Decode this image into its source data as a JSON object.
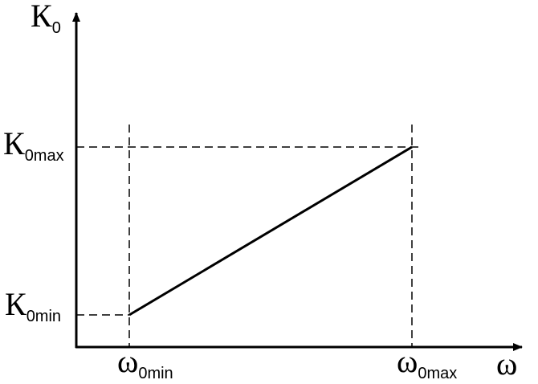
{
  "labels": {
    "y_axis": {
      "main": "К",
      "sub": "0"
    },
    "x_axis": {
      "main": "ω"
    },
    "k_max": {
      "main": "К",
      "sub": "0max"
    },
    "k_min": {
      "main": "К",
      "sub": "0min"
    },
    "w_min": {
      "main": "ω",
      "sub": "0min"
    },
    "w_max": {
      "main": "ω",
      "sub": "0max"
    }
  }
}
